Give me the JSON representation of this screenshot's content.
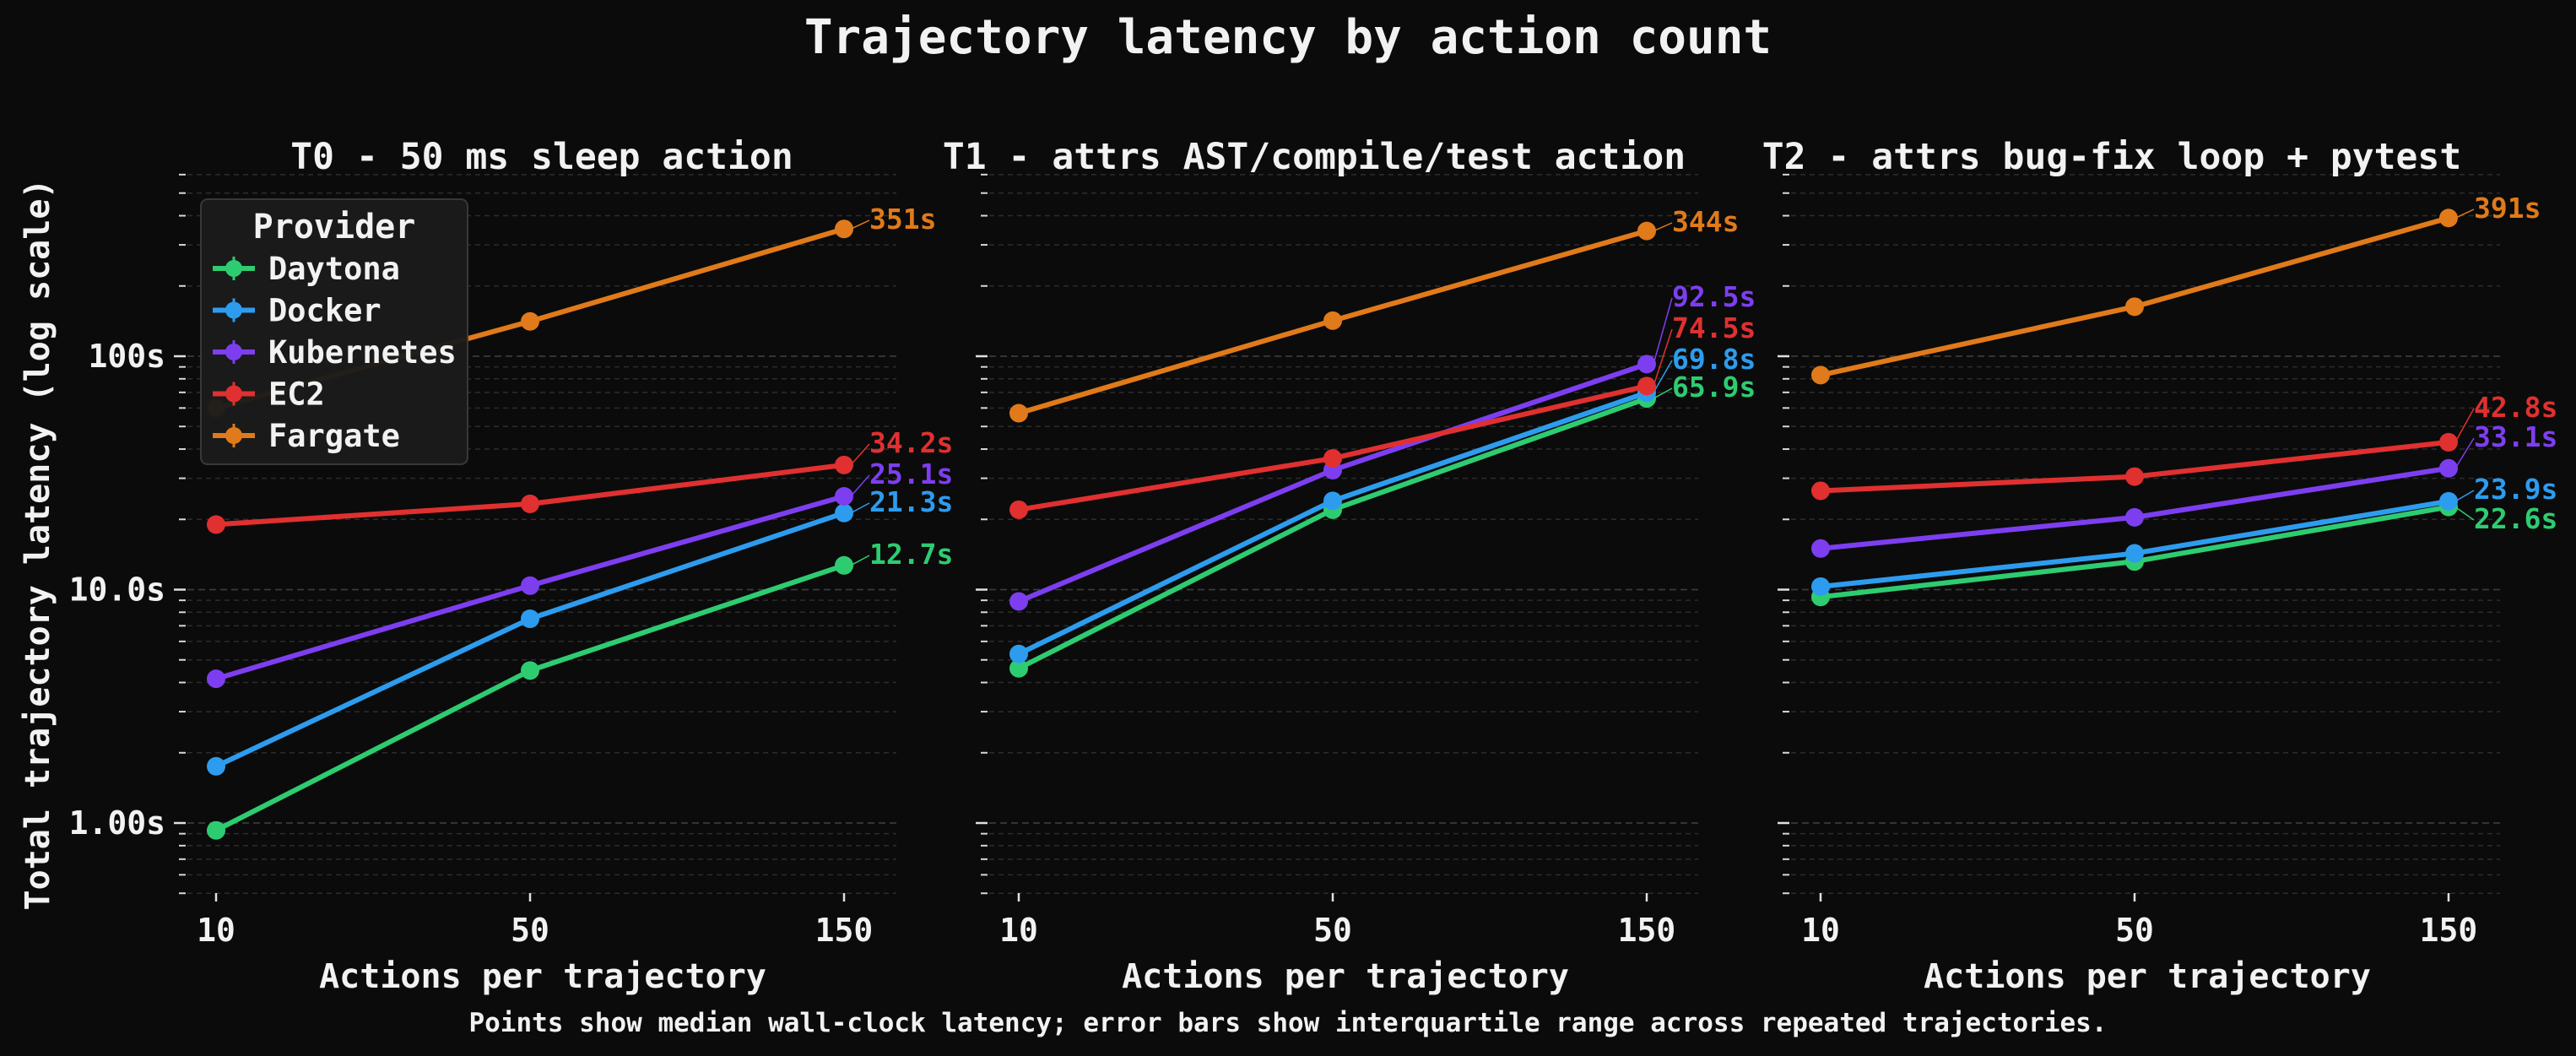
{
  "title": "Trajectory latency by action count",
  "caption": "Points show median wall-clock latency; error bars show interquartile range across repeated trajectories.",
  "legend_title": "Provider",
  "chart_data": [
    {
      "type": "line",
      "title": "T0 - 50 ms sleep action",
      "xlabel": "Actions per trajectory",
      "ylabel": "Total trajectory latency (log scale)",
      "yscale": "log",
      "ylim": [
        0.5,
        600
      ],
      "yticks": [
        "1.00s",
        "10.0s",
        "100s"
      ],
      "categories": [
        "10",
        "50",
        "150"
      ],
      "legend": "top-left",
      "series": [
        {
          "name": "Daytona",
          "color": "#2ecc71",
          "values": [
            0.93,
            4.5,
            12.7
          ],
          "end_label": "12.7s"
        },
        {
          "name": "Docker",
          "color": "#2d9cef",
          "values": [
            1.75,
            7.5,
            21.3
          ],
          "end_label": "21.3s"
        },
        {
          "name": "Kubernetes",
          "color": "#7d3ef0",
          "values": [
            4.15,
            10.4,
            25.1
          ],
          "end_label": "25.1s"
        },
        {
          "name": "EC2",
          "color": "#e03030",
          "values": [
            19.0,
            23.3,
            34.2
          ],
          "end_label": "34.2s"
        },
        {
          "name": "Fargate",
          "color": "#e07a1a",
          "values": [
            60,
            141,
            351
          ],
          "end_label": "351s"
        }
      ]
    },
    {
      "type": "line",
      "title": "T1 - attrs AST/compile/test action",
      "xlabel": "Actions per trajectory",
      "yscale": "log",
      "ylim": [
        0.5,
        600
      ],
      "categories": [
        "10",
        "50",
        "150"
      ],
      "series": [
        {
          "name": "Daytona",
          "color": "#2ecc71",
          "values": [
            4.6,
            22,
            65.9
          ],
          "end_label": "65.9s"
        },
        {
          "name": "Docker",
          "color": "#2d9cef",
          "values": [
            5.3,
            24,
            69.8
          ],
          "end_label": "69.8s"
        },
        {
          "name": "Kubernetes",
          "color": "#7d3ef0",
          "values": [
            8.9,
            32.5,
            92.5
          ],
          "end_label": "92.5s"
        },
        {
          "name": "EC2",
          "color": "#e03030",
          "values": [
            22,
            36.5,
            74.5
          ],
          "end_label": "74.5s"
        },
        {
          "name": "Fargate",
          "color": "#e07a1a",
          "values": [
            57,
            142,
            344
          ],
          "end_label": "344s"
        }
      ]
    },
    {
      "type": "line",
      "title": "T2 - attrs bug-fix loop + pytest",
      "xlabel": "Actions per trajectory",
      "yscale": "log",
      "ylim": [
        0.5,
        600
      ],
      "categories": [
        "10",
        "50",
        "150"
      ],
      "series": [
        {
          "name": "Daytona",
          "color": "#2ecc71",
          "values": [
            9.3,
            13.2,
            22.6
          ],
          "end_label": "22.6s"
        },
        {
          "name": "Docker",
          "color": "#2d9cef",
          "values": [
            10.3,
            14.3,
            23.9
          ],
          "end_label": "23.9s"
        },
        {
          "name": "Kubernetes",
          "color": "#7d3ef0",
          "values": [
            15,
            20.4,
            33.1
          ],
          "end_label": "33.1s"
        },
        {
          "name": "EC2",
          "color": "#e03030",
          "values": [
            26.5,
            30.5,
            42.8
          ],
          "end_label": "42.8s"
        },
        {
          "name": "Fargate",
          "color": "#e07a1a",
          "values": [
            83,
            163,
            391
          ],
          "end_label": "391s"
        }
      ]
    }
  ]
}
